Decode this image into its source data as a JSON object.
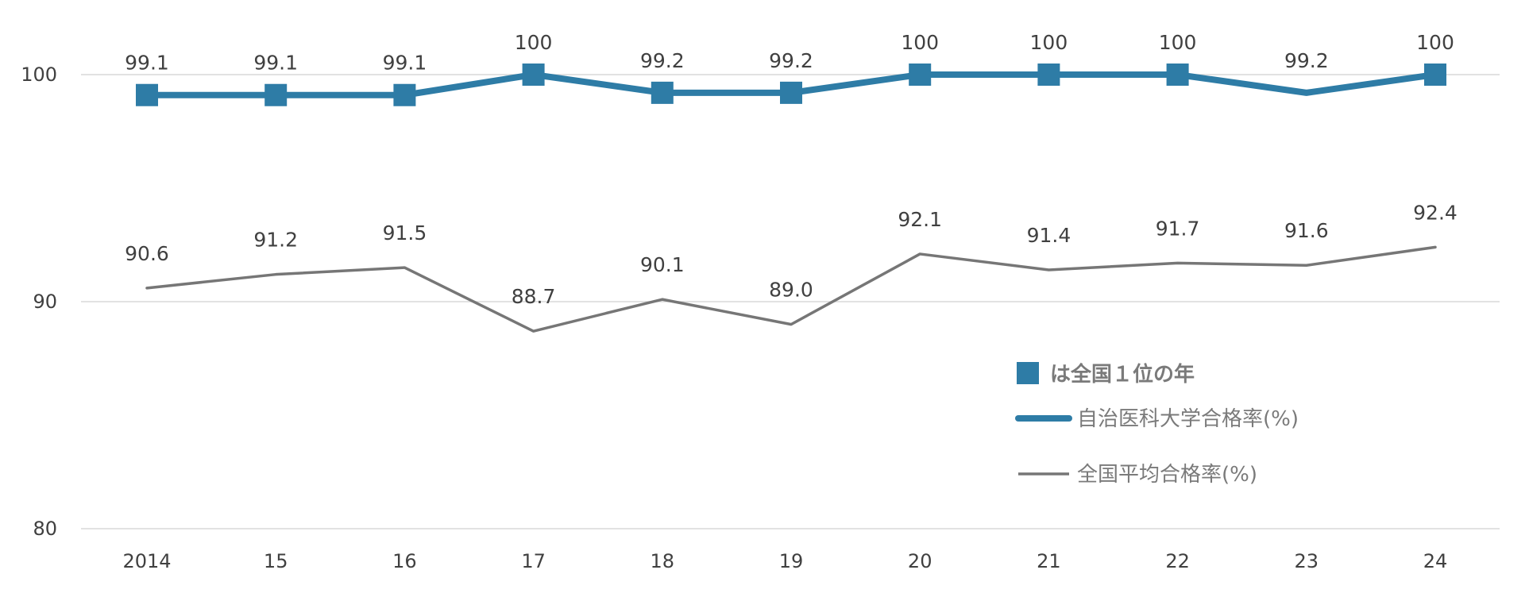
{
  "chart_data": {
    "type": "line",
    "title": "",
    "xlabel": "",
    "ylabel": "",
    "categories": [
      "2014",
      "15",
      "16",
      "17",
      "18",
      "19",
      "20",
      "21",
      "22",
      "23",
      "24"
    ],
    "ylim": [
      80,
      102
    ],
    "yticks": [
      80,
      90,
      100
    ],
    "grid": true,
    "legend_position": "right",
    "series": [
      {
        "name": "自治医科大学合格率(%)",
        "color": "#2e7ca6",
        "values": [
          99.1,
          99.1,
          99.1,
          100,
          99.2,
          99.2,
          100,
          100,
          100,
          99.2,
          100
        ],
        "labels": [
          "99.1",
          "99.1",
          "99.1",
          "100",
          "99.2",
          "99.2",
          "100",
          "100",
          "100",
          "99.2",
          "100"
        ],
        "first_place_markers": [
          true,
          true,
          true,
          true,
          true,
          true,
          true,
          true,
          true,
          false,
          true
        ]
      },
      {
        "name": "全国平均合格率(%)",
        "color": "#767676",
        "values": [
          90.6,
          91.2,
          91.5,
          88.7,
          90.1,
          89.0,
          92.1,
          91.4,
          91.7,
          91.6,
          92.4
        ],
        "labels": [
          "90.6",
          "91.2",
          "91.5",
          "88.7",
          "90.1",
          "89.0",
          "92.1",
          "91.4",
          "91.7",
          "91.6",
          "92.4"
        ]
      }
    ],
    "legend_note": "は全国１位の年",
    "marker_color": "#2e7ca6"
  }
}
